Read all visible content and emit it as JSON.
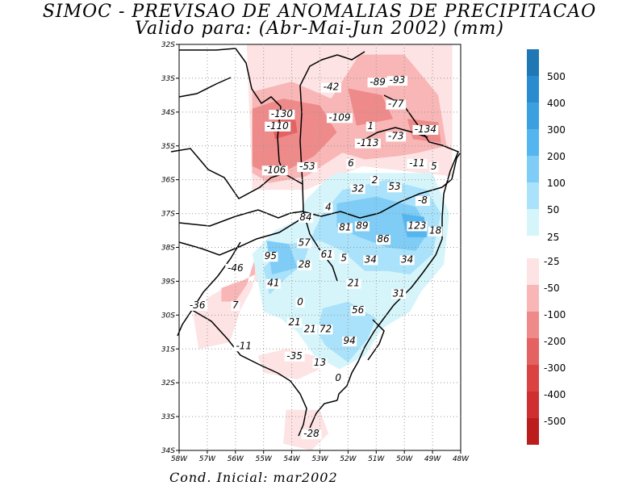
{
  "title_line1": "SIMOC - PREVISAO DE ANOMALIAS DE PRECIPITACAO",
  "title_line2": "Valido para: (Abr-Mai-Jun 2002) (mm)",
  "footer": "Cond. Inicial: mar2002",
  "lat_labels": [
    "32S",
    "33S",
    "34S",
    "35S",
    "36S",
    "37S",
    "38S",
    "39S",
    "30S",
    "31S",
    "32S",
    "33S",
    "34S"
  ],
  "lon_labels": [
    "58W",
    "57W",
    "56W",
    "55W",
    "54W",
    "53W",
    "52W",
    "51W",
    "50W",
    "49W",
    "48W"
  ],
  "legend_positive": [
    "500",
    "400",
    "300",
    "200",
    "100",
    "50",
    "25"
  ],
  "legend_negative": [
    "-25",
    "-50",
    "-100",
    "-200",
    "-300",
    "-400",
    "-500"
  ],
  "colors": {
    "pos": [
      "#1f78b4",
      "#2a8ccf",
      "#3aa0e0",
      "#55b6ef",
      "#7fcdf6",
      "#a9e2fa",
      "#d6f5fb"
    ],
    "neg": [
      "#fde3e3",
      "#f8b6b6",
      "#ee8a8a",
      "#e46262",
      "#db4343",
      "#cf2f2f",
      "#bb1d1d"
    ]
  },
  "anomaly_values": [
    {
      "label": "-42",
      "lon": 52.6,
      "lat": 23.35
    },
    {
      "label": "-89",
      "lon": 50.95,
      "lat": 23.2
    },
    {
      "label": "-93",
      "lon": 50.25,
      "lat": 23.15
    },
    {
      "label": "-77",
      "lon": 50.3,
      "lat": 23.85
    },
    {
      "label": "-130",
      "lon": 54.35,
      "lat": 24.15
    },
    {
      "label": "-109",
      "lon": 52.3,
      "lat": 24.25
    },
    {
      "label": "-110",
      "lon": 54.5,
      "lat": 24.5
    },
    {
      "label": "1",
      "lon": 51.2,
      "lat": 24.5
    },
    {
      "label": "-134",
      "lon": 49.25,
      "lat": 24.6
    },
    {
      "label": "-73",
      "lon": 50.3,
      "lat": 24.8
    },
    {
      "label": "-113",
      "lon": 51.3,
      "lat": 25.0
    },
    {
      "label": "6",
      "lon": 51.9,
      "lat": 25.6
    },
    {
      "label": "-53",
      "lon": 53.45,
      "lat": 25.7
    },
    {
      "label": "-106",
      "lon": 54.6,
      "lat": 25.8
    },
    {
      "label": "-11",
      "lon": 49.55,
      "lat": 25.6
    },
    {
      "label": "5",
      "lon": 48.95,
      "lat": 25.7
    },
    {
      "label": "2",
      "lon": 51.05,
      "lat": 26.1
    },
    {
      "label": "32",
      "lon": 51.65,
      "lat": 26.35
    },
    {
      "label": "53",
      "lon": 50.35,
      "lat": 26.3
    },
    {
      "label": "-8",
      "lon": 49.35,
      "lat": 26.7
    },
    {
      "label": "4",
      "lon": 52.7,
      "lat": 26.9
    },
    {
      "label": "84",
      "lon": 53.5,
      "lat": 27.2
    },
    {
      "label": "81",
      "lon": 52.1,
      "lat": 27.5
    },
    {
      "label": "89",
      "lon": 51.5,
      "lat": 27.45
    },
    {
      "label": "123",
      "lon": 49.55,
      "lat": 27.45
    },
    {
      "label": "18",
      "lon": 48.9,
      "lat": 27.6
    },
    {
      "label": "57",
      "lon": 53.55,
      "lat": 27.95
    },
    {
      "label": "86",
      "lon": 50.75,
      "lat": 27.85
    },
    {
      "label": "95",
      "lon": 54.75,
      "lat": 28.35
    },
    {
      "label": "61",
      "lon": 52.75,
      "lat": 28.3
    },
    {
      "label": "5",
      "lon": 52.15,
      "lat": 28.4
    },
    {
      "label": "34",
      "lon": 51.2,
      "lat": 28.45
    },
    {
      "label": "34",
      "lon": 49.9,
      "lat": 28.45
    },
    {
      "label": "28",
      "lon": 53.55,
      "lat": 28.6
    },
    {
      "label": "-46",
      "lon": 56.0,
      "lat": 28.7
    },
    {
      "label": "41",
      "lon": 54.65,
      "lat": 29.15
    },
    {
      "label": "21",
      "lon": 51.8,
      "lat": 29.15
    },
    {
      "label": "31",
      "lon": 50.2,
      "lat": 29.45
    },
    {
      "label": "7",
      "lon": 56.0,
      "lat": 29.8
    },
    {
      "label": "0",
      "lon": 53.7,
      "lat": 29.7
    },
    {
      "label": "-36",
      "lon": 57.35,
      "lat": 29.8
    },
    {
      "label": "56",
      "lon": 51.65,
      "lat": 29.95
    },
    {
      "label": "21",
      "lon": 53.9,
      "lat": 30.3
    },
    {
      "label": "21",
      "lon": 53.35,
      "lat": 30.5
    },
    {
      "label": "72",
      "lon": 52.8,
      "lat": 30.5
    },
    {
      "label": "94",
      "lon": 51.95,
      "lat": 30.85
    },
    {
      "label": "-11",
      "lon": 55.7,
      "lat": 31.0
    },
    {
      "label": "-35",
      "lon": 53.9,
      "lat": 31.3
    },
    {
      "label": "13",
      "lon": 53.0,
      "lat": 31.5
    },
    {
      "label": "0",
      "lon": 52.35,
      "lat": 31.95
    },
    {
      "label": "-28",
      "lon": 53.3,
      "lat": 33.6
    }
  ],
  "regions": [
    {
      "sign": "neg",
      "level": 0,
      "pts": [
        [
          55.2,
          28.3
        ],
        [
          55.2,
          29.0
        ],
        [
          56.0,
          29.0
        ],
        [
          57.0,
          29.5
        ],
        [
          57.5,
          30.0
        ],
        [
          57.3,
          31.0
        ],
        [
          56.2,
          30.8
        ],
        [
          55.8,
          29.8
        ],
        [
          55.4,
          29.2
        ]
      ]
    },
    {
      "sign": "neg",
      "level": 1,
      "pts": [
        [
          55.3,
          28.3
        ],
        [
          55.3,
          28.8
        ],
        [
          55.8,
          29.0
        ],
        [
          56.5,
          29.2
        ],
        [
          56.5,
          29.6
        ],
        [
          56.0,
          29.6
        ],
        [
          55.6,
          29.1
        ]
      ]
    },
    {
      "sign": "neg",
      "level": 0,
      "pts": [
        [
          55.2,
          31.2
        ],
        [
          54.2,
          31.0
        ],
        [
          53.2,
          31.2
        ],
        [
          53.0,
          31.6
        ],
        [
          53.8,
          31.9
        ],
        [
          55.0,
          31.7
        ]
      ]
    },
    {
      "sign": "neg",
      "level": 0,
      "pts": [
        [
          54.2,
          32.8
        ],
        [
          53.0,
          32.8
        ],
        [
          52.7,
          33.5
        ],
        [
          53.3,
          34.0
        ],
        [
          54.3,
          33.8
        ]
      ]
    },
    {
      "sign": "neg",
      "level": 0,
      "pts": [
        [
          55.6,
          22.0
        ],
        [
          48.3,
          22.0
        ],
        [
          48.3,
          25.9
        ],
        [
          51.5,
          25.6
        ],
        [
          53.5,
          26.3
        ],
        [
          55.4,
          26.3
        ]
      ]
    },
    {
      "sign": "neg",
      "level": 1,
      "pts": [
        [
          55.4,
          23.4
        ],
        [
          54.0,
          23.1
        ],
        [
          52.6,
          23.6
        ],
        [
          51.6,
          22.3
        ],
        [
          50.0,
          22.3
        ],
        [
          48.8,
          23.5
        ],
        [
          48.5,
          25.0
        ],
        [
          49.5,
          25.2
        ],
        [
          50.2,
          25.3
        ],
        [
          51.4,
          25.4
        ],
        [
          52.2,
          25.2
        ],
        [
          53.5,
          25.9
        ],
        [
          54.8,
          26.1
        ],
        [
          55.4,
          25.8
        ]
      ]
    },
    {
      "sign": "neg",
      "level": 2,
      "pts": [
        [
          55.4,
          23.9
        ],
        [
          54.3,
          23.6
        ],
        [
          53.0,
          23.8
        ],
        [
          52.4,
          24.6
        ],
        [
          53.2,
          25.3
        ],
        [
          54.6,
          25.9
        ],
        [
          55.4,
          25.6
        ]
      ]
    },
    {
      "sign": "neg",
      "level": 2,
      "pts": [
        [
          52.0,
          23.3
        ],
        [
          50.8,
          23.5
        ],
        [
          50.4,
          24.2
        ],
        [
          51.7,
          24.4
        ]
      ]
    },
    {
      "sign": "neg",
      "level": 2,
      "pts": [
        [
          49.9,
          24.2
        ],
        [
          48.8,
          24.3
        ],
        [
          48.7,
          24.9
        ],
        [
          49.7,
          24.8
        ]
      ]
    },
    {
      "sign": "neg",
      "level": 3,
      "pts": [
        [
          54.7,
          24.3
        ],
        [
          53.9,
          24.1
        ],
        [
          53.8,
          24.6
        ],
        [
          54.6,
          24.8
        ]
      ]
    },
    {
      "sign": "pos",
      "level": 6,
      "pts": [
        [
          52.4,
          25.8
        ],
        [
          49.0,
          25.8
        ],
        [
          48.4,
          27.0
        ],
        [
          48.6,
          28.5
        ],
        [
          49.4,
          29.3
        ],
        [
          49.8,
          29.9
        ],
        [
          50.8,
          30.4
        ],
        [
          51.4,
          31.2
        ],
        [
          52.3,
          31.6
        ],
        [
          53.2,
          31.2
        ],
        [
          53.8,
          30.5
        ],
        [
          54.4,
          30.1
        ],
        [
          55.0,
          29.9
        ],
        [
          55.2,
          29.0
        ],
        [
          55.4,
          28.2
        ],
        [
          54.6,
          27.5
        ],
        [
          53.8,
          27.2
        ],
        [
          53.5,
          26.6
        ],
        [
          52.8,
          26.0
        ]
      ]
    },
    {
      "sign": "pos",
      "level": 5,
      "pts": [
        [
          52.2,
          26.3
        ],
        [
          50.6,
          26.0
        ],
        [
          49.2,
          26.3
        ],
        [
          48.7,
          27.0
        ],
        [
          49.0,
          28.2
        ],
        [
          49.8,
          28.8
        ],
        [
          50.6,
          28.7
        ],
        [
          51.4,
          28.7
        ],
        [
          52.2,
          28.1
        ],
        [
          53.0,
          27.8
        ],
        [
          54.2,
          27.9
        ],
        [
          55.0,
          28.6
        ],
        [
          54.8,
          29.4
        ],
        [
          54.2,
          28.9
        ],
        [
          53.6,
          28.5
        ],
        [
          53.2,
          27.5
        ],
        [
          52.9,
          27.0
        ]
      ]
    },
    {
      "sign": "pos",
      "level": 5,
      "pts": [
        [
          52.9,
          29.8
        ],
        [
          52.0,
          29.6
        ],
        [
          51.0,
          30.1
        ],
        [
          51.3,
          30.7
        ],
        [
          52.0,
          31.4
        ],
        [
          52.8,
          30.9
        ],
        [
          53.1,
          30.5
        ]
      ]
    },
    {
      "sign": "pos",
      "level": 4,
      "pts": [
        [
          52.4,
          26.7
        ],
        [
          51.0,
          26.5
        ],
        [
          49.6,
          26.8
        ],
        [
          49.1,
          27.5
        ],
        [
          49.6,
          28.1
        ],
        [
          50.6,
          28.0
        ],
        [
          51.6,
          27.7
        ],
        [
          52.4,
          27.4
        ]
      ]
    },
    {
      "sign": "pos",
      "level": 4,
      "pts": [
        [
          54.9,
          27.8
        ],
        [
          54.1,
          27.9
        ],
        [
          53.8,
          28.6
        ],
        [
          54.7,
          28.8
        ]
      ]
    },
    {
      "sign": "pos",
      "level": 3,
      "pts": [
        [
          50.1,
          27.0
        ],
        [
          49.3,
          27.1
        ],
        [
          49.2,
          27.7
        ],
        [
          49.9,
          27.7
        ]
      ]
    }
  ]
}
